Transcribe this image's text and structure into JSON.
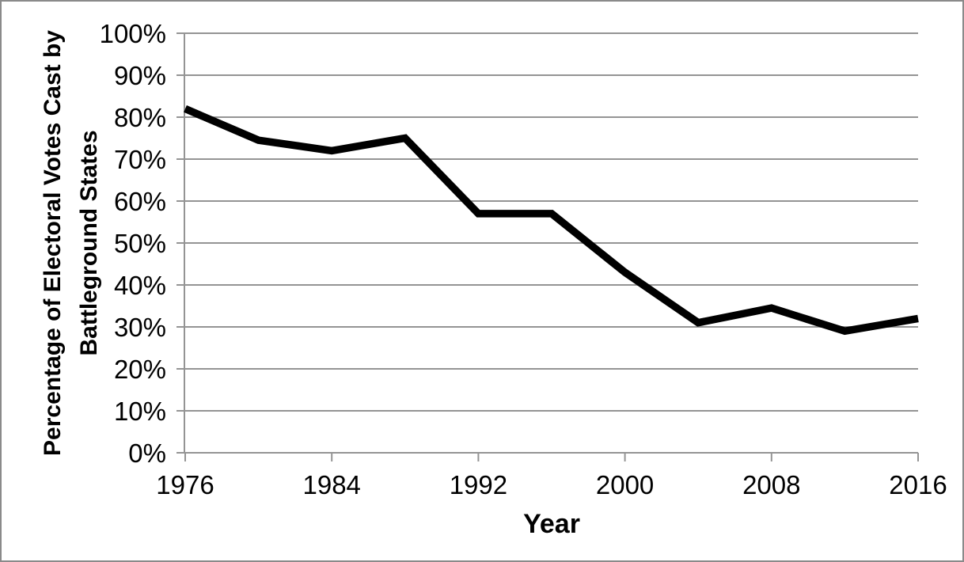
{
  "chart_data": {
    "type": "line",
    "title": "",
    "x": [
      1976,
      1980,
      1984,
      1988,
      1992,
      1996,
      2000,
      2004,
      2008,
      2012,
      2016
    ],
    "values": [
      82,
      74.5,
      72,
      75,
      57,
      57,
      43,
      31,
      34.5,
      29,
      32
    ],
    "series_name": "Percentage of electoral votes cast by battleground states",
    "xlabel": "Year",
    "ylabel": "Percentage of Electoral Votes Cast by Battleground States",
    "ylabel_lines": [
      "Percentage of Electoral Votes Cast by",
      "Battleground States"
    ],
    "x_ticks": [
      1976,
      1984,
      1992,
      2000,
      2008,
      2016
    ],
    "x_tick_labels": [
      "1976",
      "1984",
      "1992",
      "2000",
      "2008",
      "2016"
    ],
    "y_tick_labels": [
      "100%",
      "90%",
      "80%",
      "70%",
      "60%",
      "50%",
      "40%",
      "30%",
      "20%",
      "10%",
      "0%"
    ],
    "xlim": [
      1976,
      2016
    ],
    "ylim": [
      0,
      100
    ],
    "grid": "horizontal",
    "legend": "none",
    "markers": "none",
    "line_color": "#000000",
    "grid_color": "#949494",
    "axis_color": "#949494",
    "text_color": "#000000",
    "background": "#ffffff",
    "border_color": "#8a8a8a"
  }
}
